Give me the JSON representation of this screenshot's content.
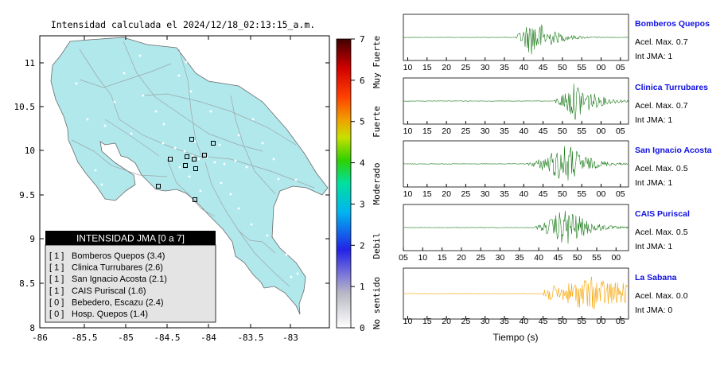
{
  "map": {
    "title": "Intensidad calculada el 2024/12/18_02:13:15_a.m.",
    "x_ticks": [
      "-86",
      "-85.5",
      "-85",
      "-84.5",
      "-84",
      "-83.5",
      "-83"
    ],
    "y_ticks": [
      "11",
      "10.5",
      "10",
      "9.5",
      "9",
      "8.5",
      "8"
    ],
    "land_color": "#b0e8ec",
    "legend": {
      "title": "INTENSIDAD JMA [0 a 7]",
      "items": [
        {
          "level": "[ 1 ]",
          "text": "Bomberos Quepos (3.4)"
        },
        {
          "level": "[ 1 ]",
          "text": "Clinica Turrubares (2.6)"
        },
        {
          "level": "[ 1 ]",
          "text": "San Ignacio Acosta (2.1)"
        },
        {
          "level": "[ 1 ]",
          "text": "CAIS Puriscal (1.6)"
        },
        {
          "level": "[ 0 ]",
          "text": "Bebedero, Escazu (2.4)"
        },
        {
          "level": "[ 0 ]",
          "text": "Hosp. Quepos (1.4)"
        }
      ]
    }
  },
  "colorbar": {
    "ticks": [
      "7",
      "6",
      "5",
      "4",
      "3",
      "2",
      "1",
      "0"
    ],
    "labels": [
      "Muy Fuerte",
      "Fuerte",
      "Moderado",
      "Debil",
      "No sentido"
    ]
  },
  "traces": {
    "xlabel": "Tiempo (s)",
    "stations": [
      {
        "name": "Bomberos Quepos",
        "acel": "Acel. Max. 0.7",
        "jma": "Int JMA: 1",
        "color": "#1a7a1a",
        "ticks": [
          "10",
          "15",
          "20",
          "25",
          "30",
          "35",
          "40",
          "45",
          "50",
          "55",
          "00",
          "05"
        ]
      },
      {
        "name": "Clinica Turrubares",
        "acel": "Acel. Max. 0.7",
        "jma": "Int JMA: 1",
        "color": "#1a7a1a",
        "ticks": [
          "10",
          "15",
          "20",
          "25",
          "30",
          "35",
          "40",
          "45",
          "50",
          "55",
          "00",
          "05"
        ]
      },
      {
        "name": "San Ignacio Acosta",
        "acel": "Acel. Max. 0.5",
        "jma": "Int JMA: 1",
        "color": "#1a7a1a",
        "ticks": [
          "10",
          "15",
          "20",
          "25",
          "30",
          "35",
          "40",
          "45",
          "50",
          "55",
          "00",
          "05"
        ]
      },
      {
        "name": "CAIS Puriscal",
        "acel": "Acel. Max. 0.5",
        "jma": "Int JMA: 1",
        "color": "#1a7a1a",
        "ticks": [
          "05",
          "10",
          "15",
          "20",
          "25",
          "30",
          "35",
          "40",
          "45",
          "50",
          "55",
          "00"
        ]
      },
      {
        "name": "La Sabana",
        "acel": "Acel. Max. 0.0",
        "jma": "Int JMA: 0",
        "color": "#f5a300",
        "ticks": [
          "10",
          "15",
          "20",
          "25",
          "30",
          "35",
          "40",
          "45",
          "50",
          "55",
          "00",
          "05"
        ]
      }
    ]
  },
  "chart_data": {
    "type": "line",
    "title": "Intensidad calculada el 2024/12/18_02:13:15_a.m.",
    "xlabel": "Tiempo (s)",
    "ylabel": "",
    "series": [
      {
        "name": "Bomberos Quepos",
        "acel_max": 0.7,
        "jma": 1,
        "onset_s": 38,
        "peak_s": 43
      },
      {
        "name": "Clinica Turrubares",
        "acel_max": 0.7,
        "jma": 1,
        "onset_s": 48,
        "peak_s": 54
      },
      {
        "name": "San Ignacio Acosta",
        "acel_max": 0.5,
        "jma": 1,
        "onset_s": 41,
        "peak_s": 52
      },
      {
        "name": "CAIS Puriscal",
        "acel_max": 0.5,
        "jma": 1,
        "onset_s": 43,
        "peak_s": 52
      },
      {
        "name": "La Sabana",
        "acel_max": 0.0,
        "jma": 0,
        "onset_s": 45,
        "peak_s": 57
      }
    ],
    "intensity_scale": [
      0,
      7
    ]
  }
}
